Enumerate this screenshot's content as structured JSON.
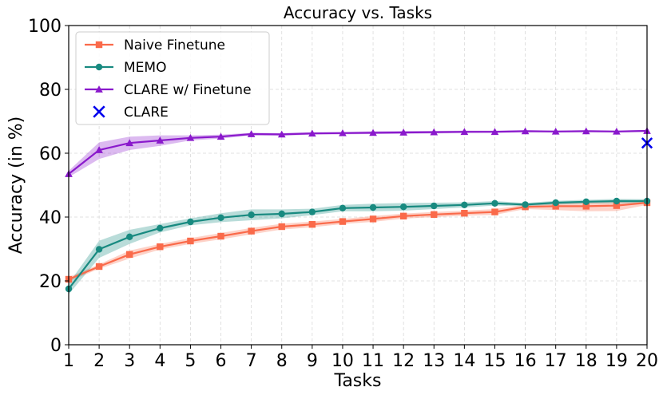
{
  "chart_data": {
    "type": "line",
    "title": "Accuracy vs. Tasks",
    "xlabel": "Tasks",
    "ylabel": "Accuracy (in %)",
    "xlim": [
      1,
      20
    ],
    "ylim": [
      0,
      100
    ],
    "xticks": [
      "1",
      "2",
      "3",
      "4",
      "5",
      "6",
      "7",
      "8",
      "9",
      "10",
      "11",
      "12",
      "13",
      "14",
      "15",
      "16",
      "17",
      "18",
      "19",
      "20"
    ],
    "yticks": [
      "0",
      "20",
      "40",
      "60",
      "80",
      "100"
    ],
    "grid": true,
    "legend_position": "top-left",
    "x": [
      1,
      2,
      3,
      4,
      5,
      6,
      7,
      8,
      9,
      10,
      11,
      12,
      13,
      14,
      15,
      16,
      17,
      18,
      19,
      20
    ],
    "series": [
      {
        "name": "Naive Finetune",
        "color": "#fa6a4a",
        "marker": "square",
        "values": [
          20.5,
          24.5,
          28.3,
          30.7,
          32.5,
          34.0,
          35.6,
          37.0,
          37.7,
          38.6,
          39.4,
          40.3,
          40.8,
          41.2,
          41.6,
          43.2,
          43.4,
          43.4,
          43.6,
          44.5
        ],
        "lower": [
          19.8,
          23.8,
          27.0,
          29.8,
          31.6,
          33.0,
          34.6,
          36.1,
          36.8,
          37.8,
          38.5,
          39.5,
          40.0,
          40.4,
          40.7,
          42.5,
          42.2,
          41.8,
          41.9,
          43.8
        ],
        "upper": [
          21.2,
          25.2,
          29.5,
          31.6,
          33.4,
          35.0,
          36.6,
          37.9,
          38.6,
          39.4,
          40.3,
          41.1,
          41.6,
          42.0,
          42.5,
          43.9,
          44.6,
          45.0,
          45.3,
          45.2
        ]
      },
      {
        "name": "MEMO",
        "color": "#188a80",
        "marker": "circle",
        "values": [
          17.5,
          29.9,
          33.8,
          36.5,
          38.5,
          39.8,
          40.7,
          41.0,
          41.6,
          42.8,
          43.0,
          43.2,
          43.5,
          43.8,
          44.3,
          43.9,
          44.5,
          44.8,
          45.0,
          45.0
        ],
        "lower": [
          15.8,
          27.2,
          31.6,
          35.2,
          37.4,
          38.4,
          39.0,
          39.6,
          40.6,
          41.8,
          41.8,
          42.0,
          42.5,
          43.0,
          43.6,
          43.4,
          43.9,
          44.2,
          44.3,
          44.4
        ],
        "upper": [
          19.2,
          32.6,
          36.0,
          37.8,
          39.6,
          41.2,
          42.4,
          42.4,
          42.6,
          43.8,
          44.2,
          44.4,
          44.5,
          44.6,
          45.0,
          44.4,
          45.1,
          45.4,
          45.7,
          45.6
        ]
      },
      {
        "name": "CLARE w/ Finetune",
        "color": "#8a19cc",
        "marker": "triangle",
        "values": [
          53.5,
          61.0,
          63.2,
          64.0,
          64.8,
          65.2,
          66.0,
          65.9,
          66.2,
          66.3,
          66.4,
          66.5,
          66.6,
          66.7,
          66.7,
          66.9,
          66.8,
          66.9,
          66.8,
          67.0
        ],
        "lower": [
          52.5,
          58.2,
          61.0,
          62.3,
          64.0,
          64.6,
          65.6,
          65.5,
          65.8,
          65.9,
          66.0,
          66.1,
          66.2,
          66.3,
          66.4,
          66.6,
          66.5,
          66.6,
          66.5,
          66.7
        ],
        "upper": [
          54.5,
          63.4,
          65.2,
          65.6,
          65.6,
          65.8,
          66.4,
          66.3,
          66.6,
          66.7,
          66.9,
          67.0,
          67.0,
          67.1,
          67.1,
          67.2,
          67.1,
          67.2,
          67.1,
          67.3
        ]
      },
      {
        "name": "CLARE",
        "color": "#0000ee",
        "marker": "x",
        "x": [
          20
        ],
        "values": [
          63.2
        ]
      }
    ]
  }
}
